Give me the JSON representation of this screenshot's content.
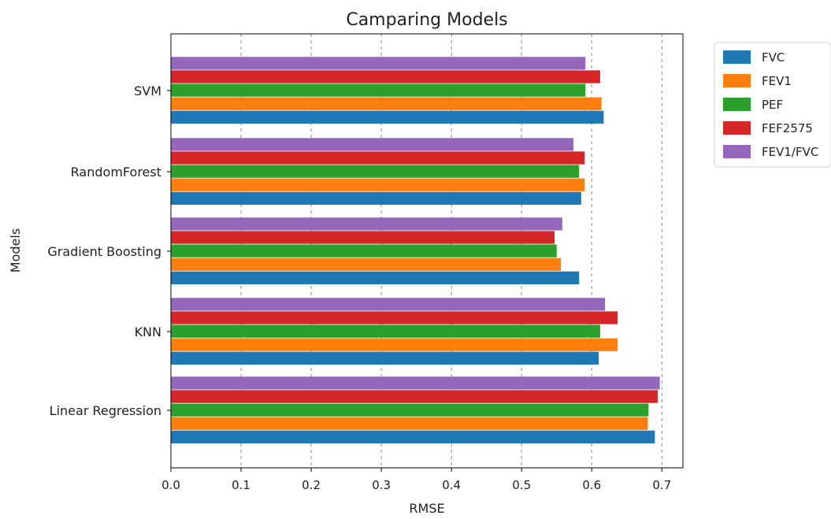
{
  "chart_data": {
    "type": "bar",
    "orientation": "horizontal",
    "title": "Camparing Models",
    "xlabel": "RMSE",
    "ylabel": "Models",
    "xlim": [
      0.0,
      0.73
    ],
    "xticks": [
      "0.0",
      "0.1",
      "0.2",
      "0.3",
      "0.4",
      "0.5",
      "0.6",
      "0.7"
    ],
    "grid": "x-dashed",
    "legend_position": "outside-top-right",
    "categories": [
      "Linear Regression",
      "KNN",
      "Gradient Boosting",
      "RandomForest",
      "SVM"
    ],
    "series": [
      {
        "name": "FVC",
        "color": "#1f77b4",
        "values": [
          0.69,
          0.61,
          0.582,
          0.585,
          0.617
        ]
      },
      {
        "name": "FEV1",
        "color": "#ff7f0e",
        "values": [
          0.68,
          0.637,
          0.556,
          0.59,
          0.614
        ]
      },
      {
        "name": "PEF",
        "color": "#2ca02c",
        "values": [
          0.681,
          0.612,
          0.55,
          0.582,
          0.591
        ]
      },
      {
        "name": "FEF2575",
        "color": "#d62728",
        "values": [
          0.694,
          0.637,
          0.547,
          0.59,
          0.612
        ]
      },
      {
        "name": "FEV1/FVC",
        "color": "#9467bd",
        "values": [
          0.697,
          0.619,
          0.558,
          0.574,
          0.591
        ]
      }
    ]
  }
}
